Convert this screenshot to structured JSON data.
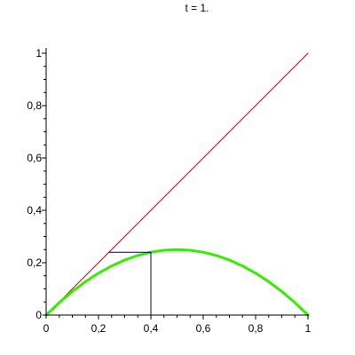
{
  "chart_data": {
    "type": "line",
    "title": "t = 1.",
    "xlabel": "",
    "ylabel": "",
    "xlim": [
      0,
      1
    ],
    "ylim": [
      0,
      1
    ],
    "x_ticks": [
      {
        "value": 0,
        "label": "0"
      },
      {
        "value": 0.2,
        "label": "0,2"
      },
      {
        "value": 0.4,
        "label": "0,4"
      },
      {
        "value": 0.6,
        "label": "0,6"
      },
      {
        "value": 0.8,
        "label": "0,8"
      },
      {
        "value": 1,
        "label": "1"
      }
    ],
    "y_ticks": [
      {
        "value": 0,
        "label": "0"
      },
      {
        "value": 0.2,
        "label": "0,2"
      },
      {
        "value": 0.4,
        "label": "0,4"
      },
      {
        "value": 0.6,
        "label": "0,6"
      },
      {
        "value": 0.8,
        "label": "0,8"
      },
      {
        "value": 1,
        "label": "1"
      }
    ],
    "grid": false,
    "series": [
      {
        "color": "#cc0000",
        "x": [
          0,
          0.1,
          0.2,
          0.3,
          0.4,
          0.5,
          0.6,
          0.7,
          0.8,
          0.9,
          1
        ],
        "y": [
          0,
          0.1,
          0.2,
          0.3,
          0.4,
          0.5,
          0.6,
          0.7,
          0.8,
          0.9,
          1
        ]
      },
      {
        "color": "#33ee00",
        "x": [
          0,
          0.05,
          0.1,
          0.15,
          0.2,
          0.25,
          0.3,
          0.35,
          0.4,
          0.45,
          0.5,
          0.55,
          0.6,
          0.65,
          0.7,
          0.75,
          0.8,
          0.85,
          0.9,
          0.95,
          1
        ],
        "y": [
          0,
          0.0475,
          0.09,
          0.1275,
          0.16,
          0.1875,
          0.21,
          0.2275,
          0.24,
          0.2475,
          0.25,
          0.2475,
          0.24,
          0.2275,
          0.21,
          0.1875,
          0.16,
          0.1275,
          0.09,
          0.0475,
          0
        ]
      },
      {
        "color": "#000066",
        "x": [
          0.24,
          0.4,
          0.4
        ],
        "y": [
          0.24,
          0.24,
          0
        ]
      }
    ]
  }
}
